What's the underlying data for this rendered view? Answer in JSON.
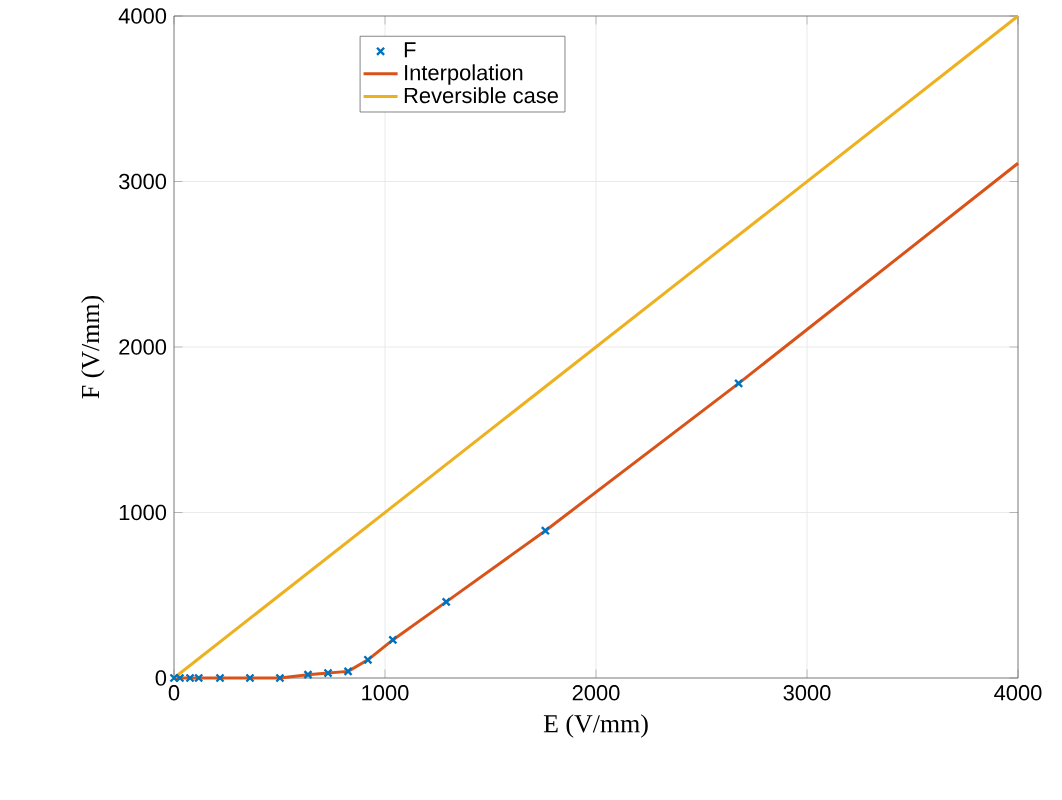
{
  "chart_data": {
    "type": "line",
    "xlabel": "E (V/mm)",
    "ylabel": "F (V/mm)",
    "xlim": [
      0,
      4000
    ],
    "ylim": [
      0,
      4000
    ],
    "xticks": [
      0,
      1000,
      2000,
      3000,
      4000
    ],
    "yticks": [
      0,
      1000,
      2000,
      3000,
      4000
    ],
    "grid": true,
    "legend": "top left",
    "series": [
      {
        "name": "F",
        "type": "scatter",
        "marker": "cross",
        "color": "#0072bd",
        "x": [
          0,
          28,
          76,
          117,
          218,
          360,
          502,
          635,
          730,
          825,
          919,
          1037,
          1290,
          1760,
          2676
        ],
        "values": [
          0,
          0,
          0,
          0,
          0,
          0,
          0,
          20,
          30,
          40,
          110,
          230,
          460,
          890,
          1780
        ]
      },
      {
        "name": "Interpolation",
        "color": "#d95319",
        "x": [
          0,
          28,
          76,
          117,
          218,
          360,
          502,
          635,
          730,
          825,
          919,
          1037,
          1290,
          1760,
          2676,
          4000
        ],
        "values": [
          0,
          0,
          0,
          0,
          0,
          0,
          0,
          20,
          30,
          40,
          110,
          230,
          460,
          890,
          1780,
          3110
        ]
      },
      {
        "name": "Reversible case",
        "color": "#edb120",
        "x": [
          0,
          4000
        ],
        "values": [
          0,
          4000
        ]
      }
    ]
  }
}
